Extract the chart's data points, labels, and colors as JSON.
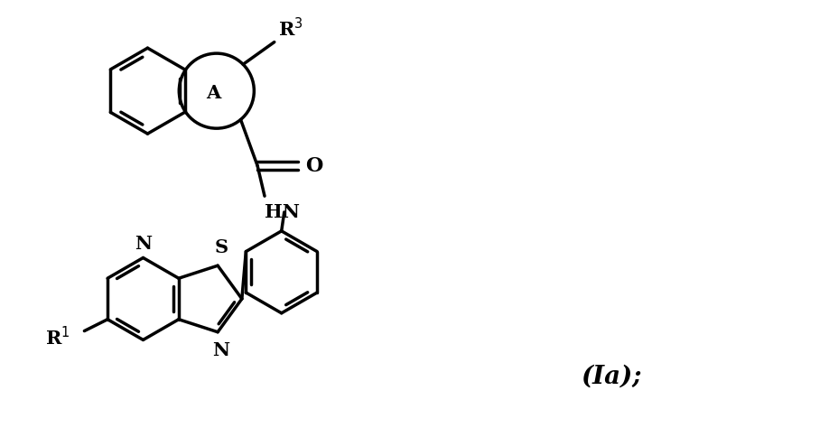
{
  "background_color": "#ffffff",
  "line_color": "#000000",
  "line_width": 2.5,
  "fig_width": 9.18,
  "fig_height": 4.84,
  "label_Ia": "(Ia);",
  "label_R3": "R$^3$",
  "label_R1": "R$^{1}$",
  "label_A": "A",
  "label_O": "O",
  "label_HN": "HN",
  "label_N_pyr": "N",
  "label_N_thz": "N",
  "label_S": "S",
  "fontsize_labels": 15,
  "fontsize_Ia": 20
}
